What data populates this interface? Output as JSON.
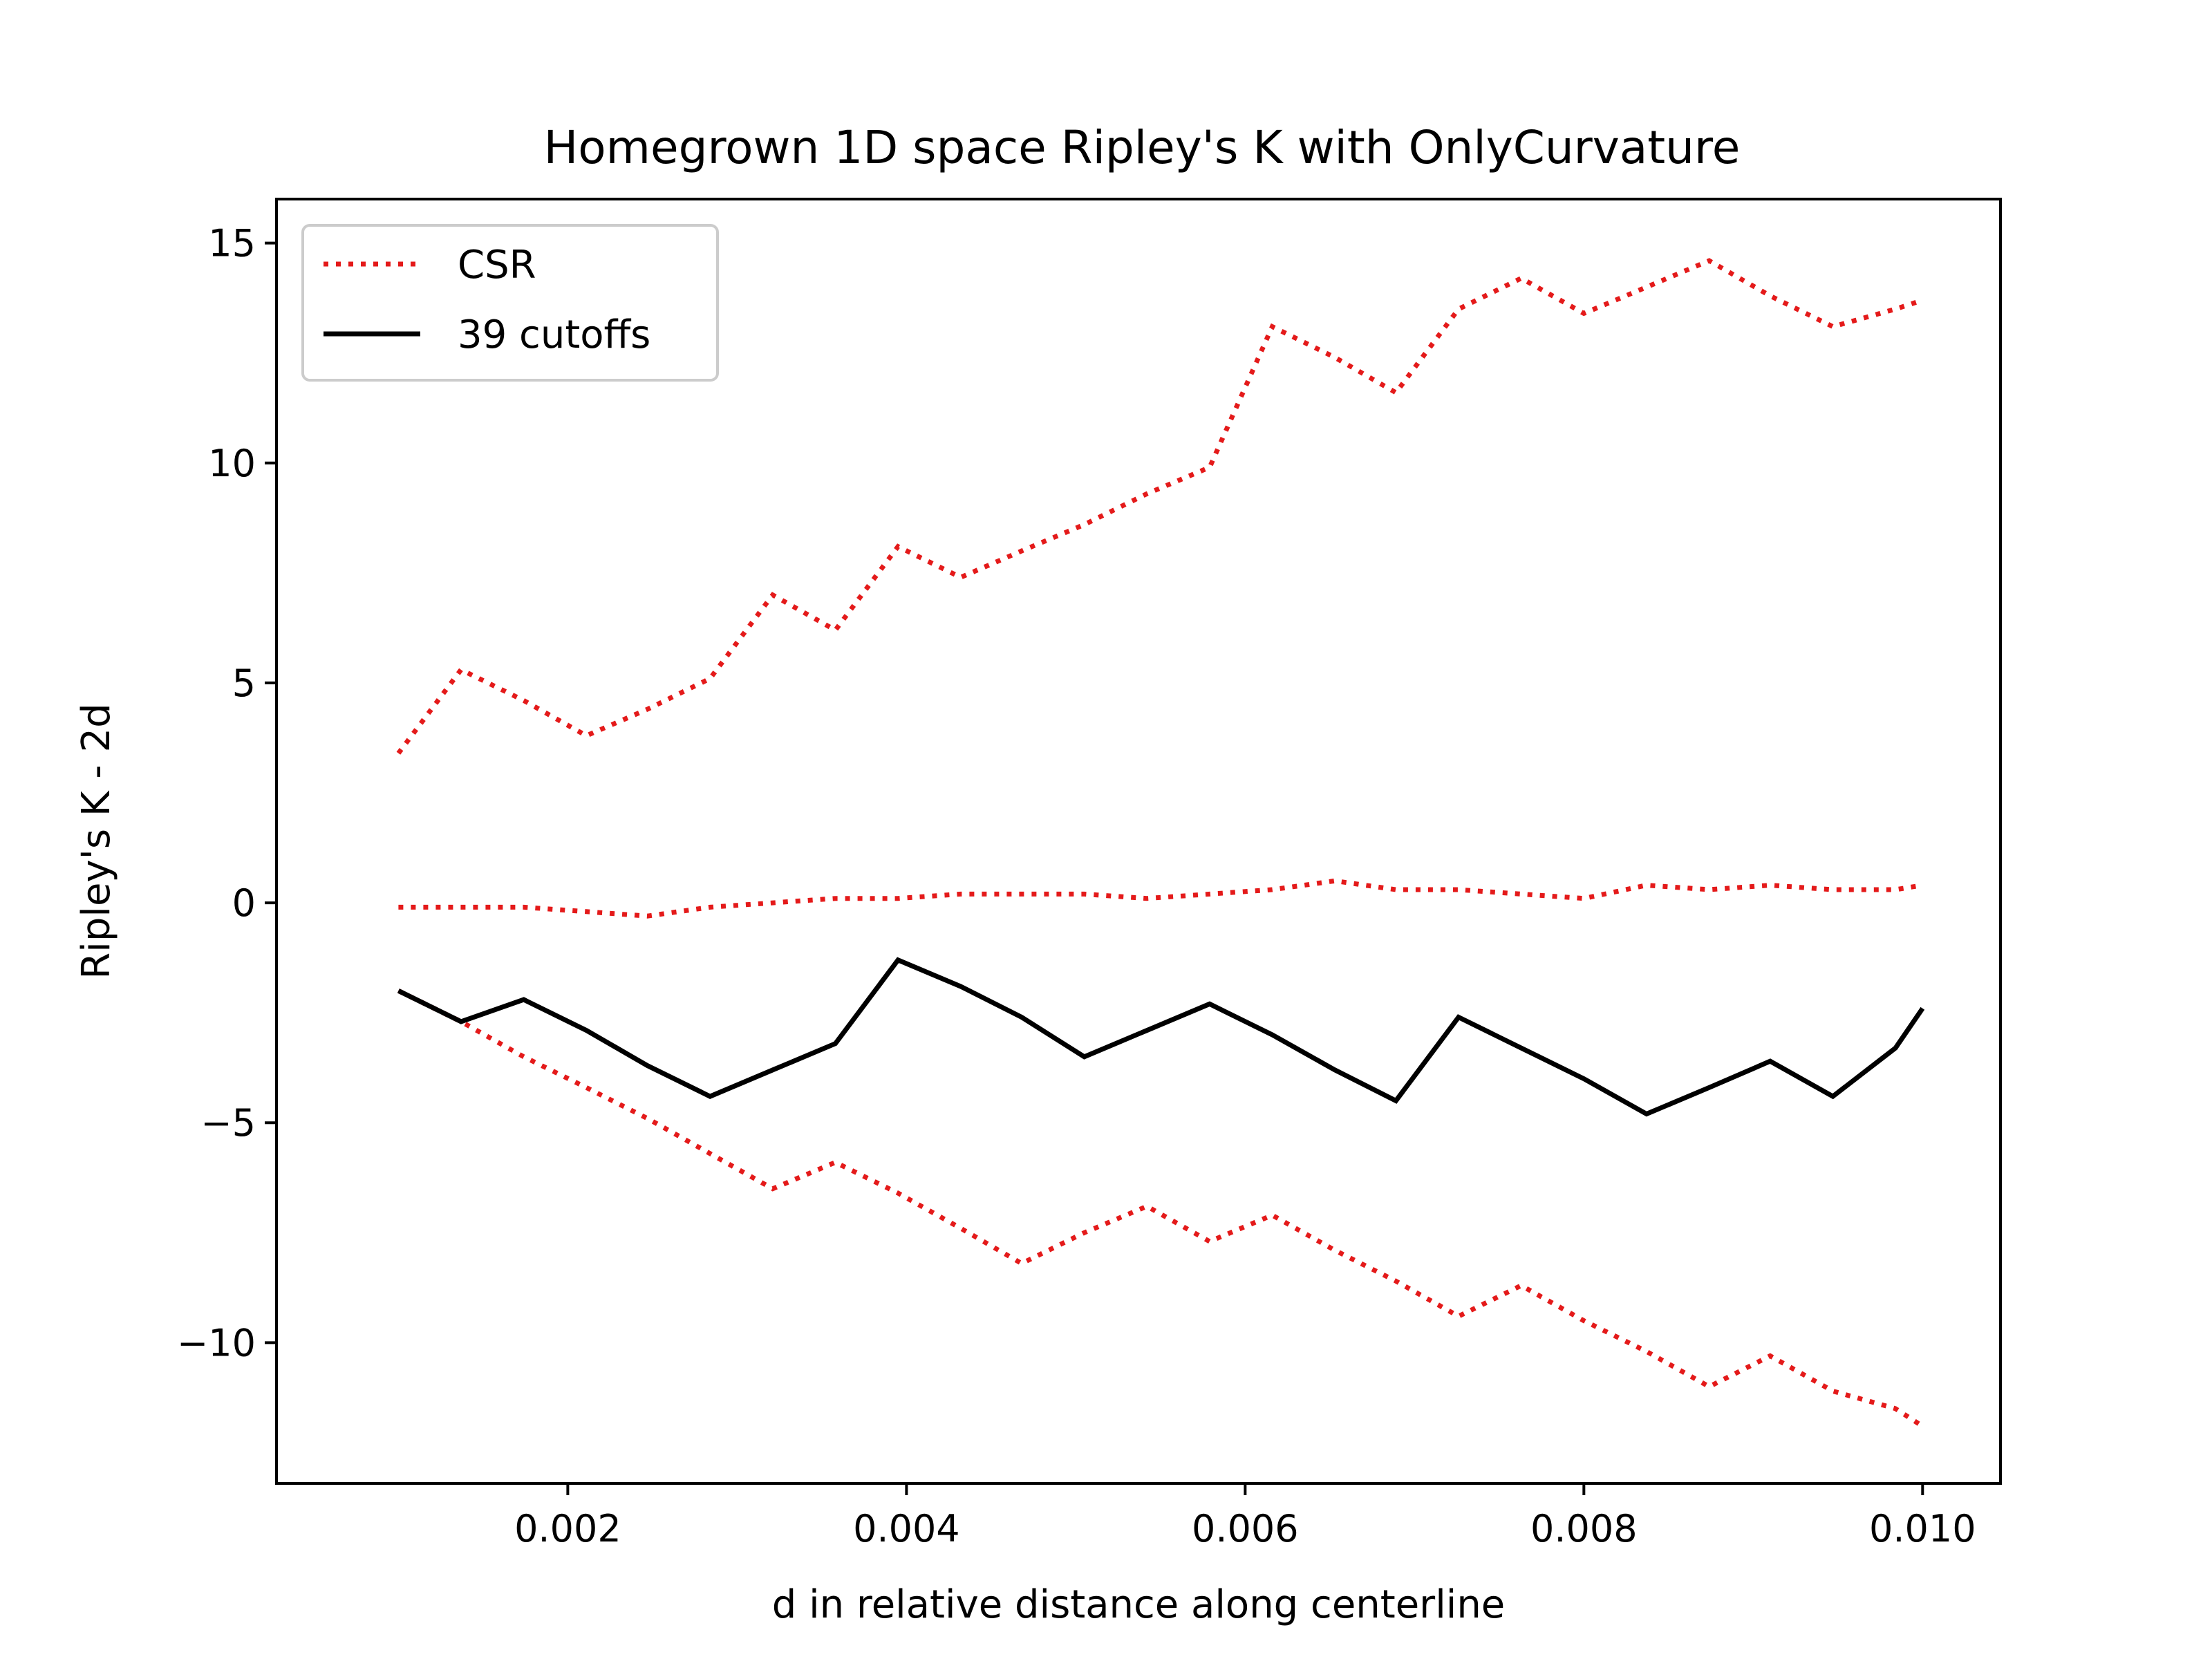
{
  "chart_data": {
    "type": "line",
    "title": "Homegrown 1D space Ripley's K with OnlyCurvature",
    "xlabel": "d in relative distance along centerline",
    "ylabel": "Ripley's K - 2d",
    "xlim": [
      0.00028,
      0.01046
    ],
    "ylim": [
      -13.2,
      16.0
    ],
    "xticks": [
      0.002,
      0.004,
      0.006,
      0.008,
      0.01
    ],
    "xtick_labels": [
      "0.002",
      "0.004",
      "0.006",
      "0.008",
      "0.010"
    ],
    "yticks": [
      -10,
      -5,
      0,
      5,
      10,
      15
    ],
    "ytick_labels": [
      "−10",
      "−5",
      "0",
      "5",
      "10",
      "15"
    ],
    "grid": false,
    "legend_position": "top-left",
    "x": [
      0.001,
      0.00137,
      0.00174,
      0.00211,
      0.00247,
      0.00284,
      0.00321,
      0.00358,
      0.00395,
      0.00432,
      0.00468,
      0.00505,
      0.00542,
      0.00579,
      0.00616,
      0.00653,
      0.00689,
      0.00726,
      0.00763,
      0.008,
      0.00837,
      0.00874,
      0.0091,
      0.00947,
      0.00984,
      0.01
    ],
    "series": [
      {
        "name": "CSR",
        "style": "dotted",
        "color": "#e41a1a",
        "values": [
          3.4,
          5.3,
          4.6,
          3.8,
          4.4,
          5.1,
          7.0,
          6.2,
          8.1,
          7.4,
          8.0,
          8.6,
          9.3,
          9.9,
          13.1,
          12.4,
          11.6,
          13.5,
          14.2,
          13.4,
          14.0,
          14.6,
          13.8,
          13.1,
          13.5,
          13.7
        ]
      },
      {
        "name": "",
        "style": "dotted",
        "color": "#e41a1a",
        "values": [
          -0.1,
          -0.1,
          -0.1,
          -0.2,
          -0.3,
          -0.1,
          0.0,
          0.1,
          0.1,
          0.2,
          0.2,
          0.2,
          0.1,
          0.2,
          0.3,
          0.5,
          0.3,
          0.3,
          0.2,
          0.1,
          0.4,
          0.3,
          0.4,
          0.3,
          0.3,
          0.4
        ]
      },
      {
        "name": "",
        "style": "dotted",
        "color": "#e41a1a",
        "values": [
          -2.0,
          -2.7,
          -3.5,
          -4.2,
          -4.9,
          -5.7,
          -6.5,
          -5.9,
          -6.6,
          -7.4,
          -8.2,
          -7.5,
          -6.9,
          -7.7,
          -7.1,
          -7.9,
          -8.6,
          -9.4,
          -8.7,
          -9.5,
          -10.2,
          -11.0,
          -10.3,
          -11.1,
          -11.5,
          -11.9
        ]
      },
      {
        "name": "39 cutoffs",
        "style": "solid",
        "color": "#000000",
        "values": [
          -2.0,
          -2.7,
          -2.2,
          -2.9,
          -3.7,
          -4.4,
          -3.8,
          -3.2,
          -1.3,
          -1.9,
          -2.6,
          -3.5,
          -2.9,
          -2.3,
          -3.0,
          -3.8,
          -4.5,
          -2.6,
          -3.3,
          -4.0,
          -4.8,
          -4.2,
          -3.6,
          -4.4,
          -3.3,
          -2.4
        ]
      }
    ]
  }
}
